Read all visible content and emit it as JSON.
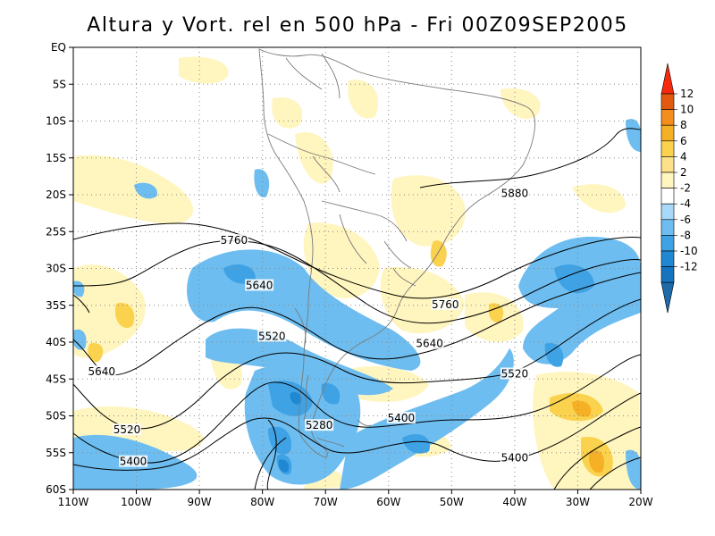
{
  "title": "Altura y Vort. rel en 500 hPa - Fri 00Z09SEP2005",
  "map": {
    "lon_range": [
      -110,
      -20
    ],
    "lat_range": [
      -60,
      0
    ],
    "lon_tick_labels": [
      "110W",
      "100W",
      "90W",
      "80W",
      "70W",
      "60W",
      "50W",
      "40W",
      "30W",
      "20W"
    ],
    "lat_tick_labels": [
      "EQ",
      "5S",
      "10S",
      "15S",
      "20S",
      "25S",
      "30S",
      "35S",
      "40S",
      "45S",
      "50S",
      "55S",
      "60S"
    ],
    "gridlines": "dotted",
    "height_contour_labels": [
      {
        "text": "5880",
        "lon": -40,
        "lat": -19.8
      },
      {
        "text": "5760",
        "lon": -84.5,
        "lat": -26.2
      },
      {
        "text": "5760",
        "lon": -51,
        "lat": -34.9
      },
      {
        "text": "5640",
        "lon": -80.5,
        "lat": -32.3
      },
      {
        "text": "5640",
        "lon": -105.5,
        "lat": -44
      },
      {
        "text": "5640",
        "lon": -53.5,
        "lat": -40.2
      },
      {
        "text": "5520",
        "lon": -78.5,
        "lat": -39.2
      },
      {
        "text": "5520",
        "lon": -101.5,
        "lat": -51.9
      },
      {
        "text": "5520",
        "lon": -40,
        "lat": -44.3
      },
      {
        "text": "5400",
        "lon": -100.5,
        "lat": -56.2
      },
      {
        "text": "5400",
        "lon": -58,
        "lat": -50.3
      },
      {
        "text": "5400",
        "lon": -40,
        "lat": -55.7
      },
      {
        "text": "5280",
        "lon": -71,
        "lat": -51.3
      }
    ]
  },
  "colorbar": {
    "labels": [
      "12",
      "10",
      "8",
      "6",
      "4",
      "2",
      "-2",
      "-4",
      "-6",
      "-8",
      "-10",
      "-12"
    ],
    "colors": [
      "#f52a0f",
      "#e15a10",
      "#f28d1e",
      "#f6b026",
      "#fad24d",
      "#fde08a",
      "#fff5be",
      "#ffffff",
      "#a9d9f9",
      "#6dbdf0",
      "#3fa2e4",
      "#1f88d2",
      "#1474c0",
      "#1f6aa8"
    ]
  }
}
